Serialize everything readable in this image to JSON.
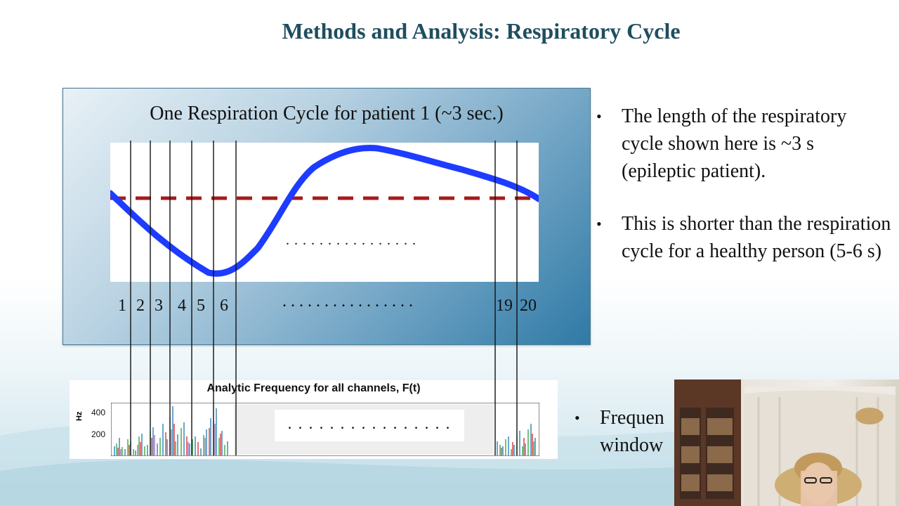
{
  "slide": {
    "title": "Methods and Analysis: Respiratory Cycle"
  },
  "figure": {
    "title": "One Respiration Cycle for patient 1 (~3 sec.)",
    "inner_dots": ". . . . . . . . . . . . . . . .",
    "cycle_labels": [
      "1",
      "2",
      "3",
      "4",
      "5",
      "6",
      ". . . . . . . . . . . . . . . .",
      "19",
      "20"
    ]
  },
  "freq_panel": {
    "title": "Analytic Frequency for all channels, F(t)",
    "ylabel": "Hz",
    "ticks": [
      "400",
      "200"
    ],
    "dots": ". . . . . . . . . . . . . . . ."
  },
  "bullets": [
    "The length of the respiratory cycle shown here is ~3 s (epileptic patient).",
    "This is shorter than the respiration cycle for a healthy person (5-6 s)"
  ],
  "bullet3": {
    "line1": "Frequen",
    "line2": "window"
  },
  "bullet_symbol": "•",
  "colors": {
    "title": "#1f4e5f",
    "resp_line": "#1e3cff",
    "mean_line": "#a61c1c"
  },
  "webcam": {
    "label": "presenter webcam"
  }
}
